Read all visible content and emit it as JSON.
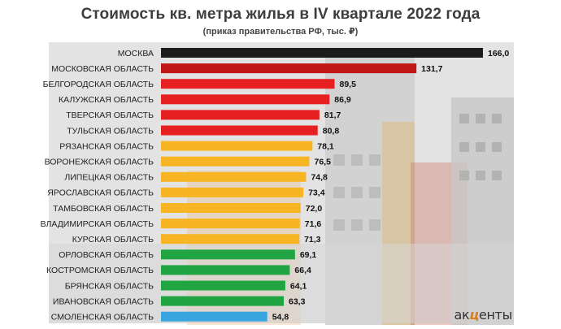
{
  "header": {
    "title": "Стоимость кв. метра жилья в IV квартале 2022 года",
    "subtitle": "(приказ правительства РФ, тыс. ₽)"
  },
  "logo": {
    "part1": "ак",
    "accent": "ц",
    "part2": "енты"
  },
  "colors": {
    "black": "#1b1b1b",
    "dark_red": "#c01818",
    "red": "#e62020",
    "yellow": "#f7b523",
    "green": "#21a543",
    "blue": "#3aa6e0"
  },
  "chart_data": {
    "type": "bar",
    "orientation": "horizontal",
    "title": "Стоимость кв. метра жилья в IV квартале 2022 года",
    "subtitle": "(приказ правительства РФ, тыс. ₽)",
    "categories": [
      "МОСКВА",
      "МОСКОВСКАЯ ОБЛАСТЬ",
      "БЕЛГОРОДСКАЯ ОБЛАСТЬ",
      "КАЛУЖСКАЯ ОБЛАСТЬ",
      "ТВЕРСКАЯ ОБЛАСТЬ",
      "ТУЛЬСКАЯ ОБЛАСТЬ",
      "РЯЗАНСКАЯ ОБЛАСТЬ",
      "ВОРОНЕЖСКАЯ ОБЛАСТЬ",
      "ЛИПЕЦКАЯ ОБЛАСТЬ",
      "ЯРОСЛАВСКАЯ ОБЛАСТЬ",
      "ТАМБОВСКАЯ ОБЛАСТЬ",
      "ВЛАДИМИРСКАЯ ОБЛАСТЬ",
      "КУРСКАЯ ОБЛАСТЬ",
      "ОРЛОВСКАЯ ОБЛАСТЬ",
      "КОСТРОМСКАЯ ОБЛАСТЬ",
      "БРЯНСКАЯ ОБЛАСТЬ",
      "ИВАНОВСКАЯ ОБЛАСТЬ",
      "СМОЛЕНСКАЯ ОБЛАСТЬ"
    ],
    "values": [
      166.0,
      131.7,
      89.5,
      86.9,
      81.7,
      80.8,
      78.1,
      76.5,
      74.8,
      73.4,
      72.0,
      71.6,
      71.3,
      69.1,
      66.4,
      64.1,
      63.3,
      54.8
    ],
    "value_labels": [
      "166,0",
      "131,7",
      "89,5",
      "86,9",
      "81,7",
      "80,8",
      "78,1",
      "76,5",
      "74,8",
      "73,4",
      "72,0",
      "71,6",
      "71,3",
      "69,1",
      "66,4",
      "64,1",
      "63,3",
      "54,8"
    ],
    "bar_colors": [
      "black",
      "dark_red",
      "red",
      "red",
      "red",
      "red",
      "yellow",
      "yellow",
      "yellow",
      "yellow",
      "yellow",
      "yellow",
      "yellow",
      "green",
      "green",
      "green",
      "green",
      "blue"
    ],
    "xlim": [
      0,
      166
    ],
    "grid": false,
    "legend": "none"
  }
}
